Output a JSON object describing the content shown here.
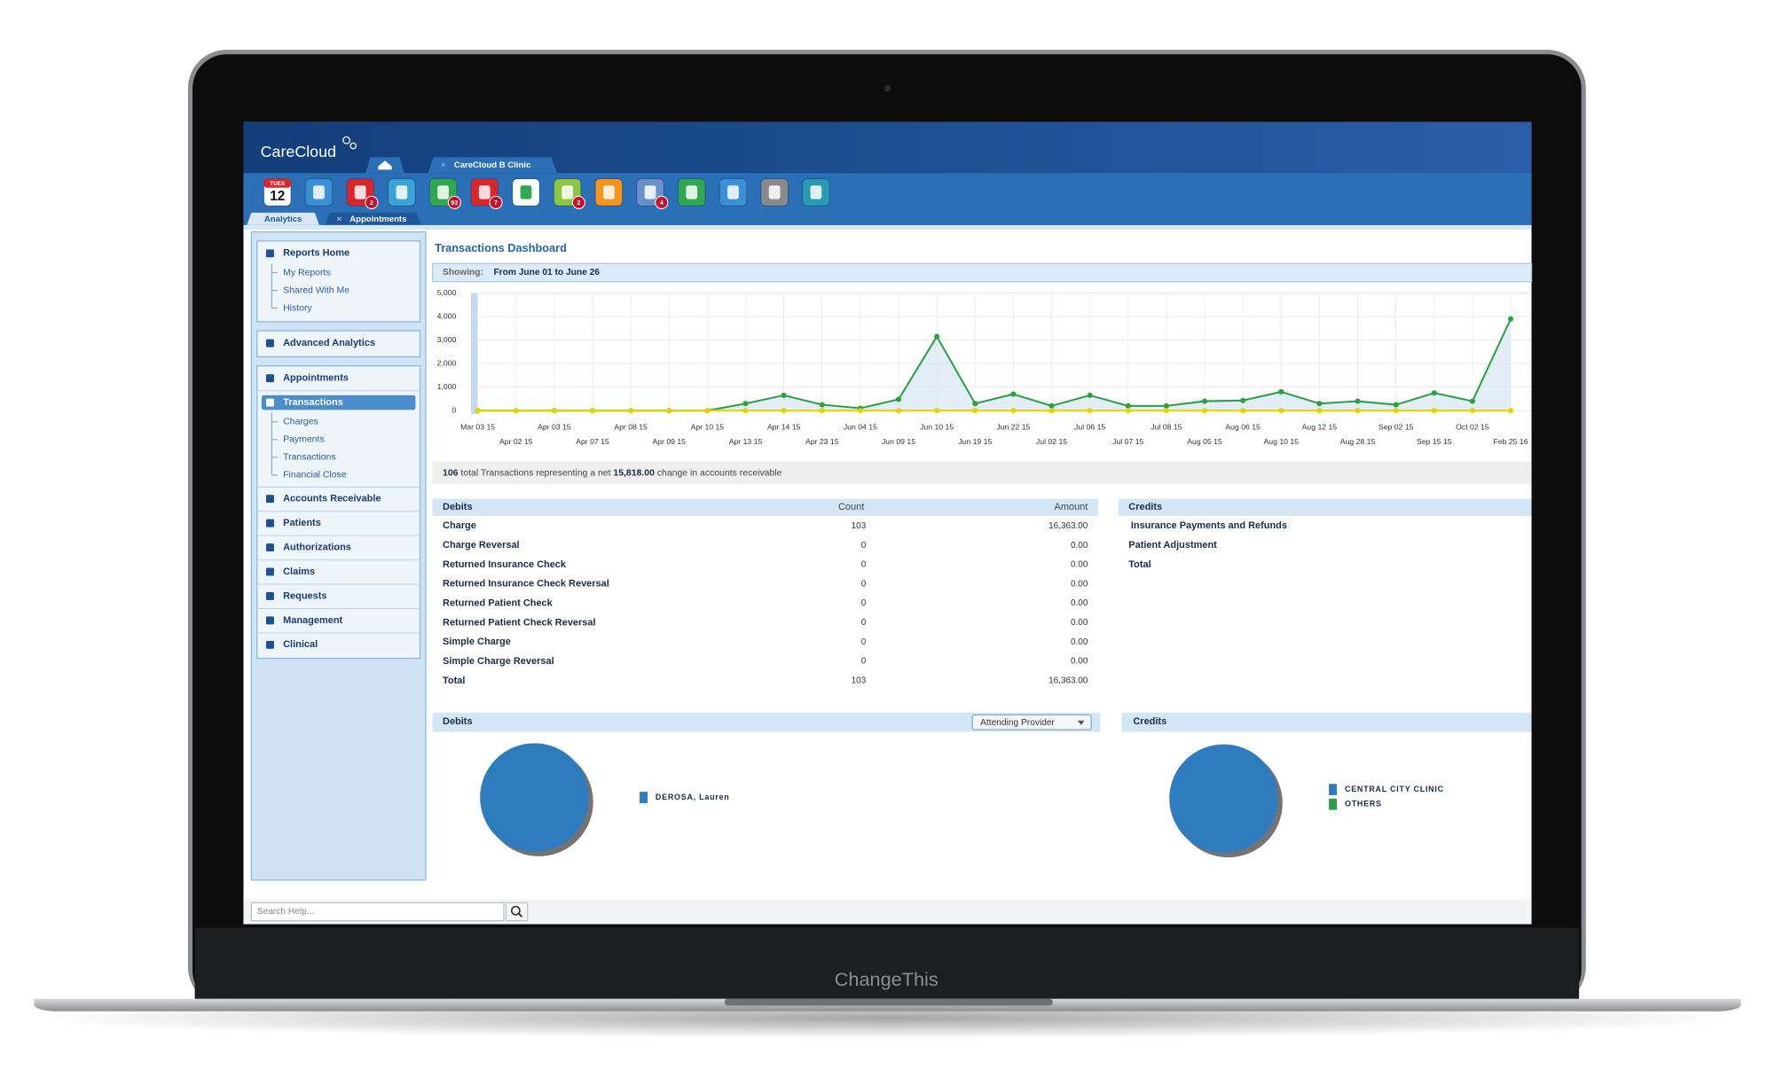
{
  "laptop_label": "ChangeThis",
  "header": {
    "logo": "CareCloud",
    "clinic_tab": "CareCloud B Clinic",
    "calendar_day": "TUES",
    "calendar_date": "12",
    "badges": [
      "2",
      "93",
      "7",
      "2",
      "4"
    ],
    "tabs": [
      "Analytics",
      "Appointments"
    ]
  },
  "sidebar": {
    "boxes": [
      [
        {
          "title": "Reports Home",
          "items": [
            "My Reports",
            "Shared With Me",
            "History"
          ]
        }
      ],
      [
        {
          "title": "Advanced Analytics",
          "items": []
        }
      ],
      [
        {
          "title": "Appointments",
          "items": []
        },
        {
          "title": "Transactions",
          "items": [
            "Charges",
            "Payments",
            "Transactions",
            "Financial Close"
          ],
          "active": true
        },
        {
          "title": "Accounts Receivable",
          "items": []
        },
        {
          "title": "Patients",
          "items": []
        },
        {
          "title": "Authorizations",
          "items": []
        },
        {
          "title": "Claims",
          "items": []
        },
        {
          "title": "Requests",
          "items": []
        },
        {
          "title": "Management",
          "items": []
        },
        {
          "title": "Clinical",
          "items": []
        }
      ]
    ],
    "search_placeholder": "Search Help..."
  },
  "dashboard": {
    "title": "Transactions Dashboard",
    "showing_label": "Showing:",
    "showing_range": "From June 01 to June 26",
    "chart": {
      "type": "line",
      "categories": [
        "Mar 03 15",
        "Apr 02 15",
        "Apr 03 15",
        "Apr 07 15",
        "Apr 08 15",
        "Apr 09 15",
        "Apr 10 15",
        "Apr 13 15",
        "Apr 14 15",
        "Apr 23 15",
        "Jun 04 15",
        "Jun 09 15",
        "Jun 10 15",
        "Jun 19 15",
        "Jun 22 15",
        "Jul 02 15",
        "Jul 06 15",
        "Jul 07 15",
        "Jul 08 15",
        "Aug 05 15",
        "Aug 06 15",
        "Aug 10 15",
        "Aug 12 15",
        "Aug 28 15",
        "Sep 02 15",
        "Sep 15 15",
        "Oct 02 15",
        "Feb 25 16"
      ],
      "ylim": [
        0,
        5000
      ],
      "yticks": [
        0,
        {
          "value": 1000,
          "label": "1,000"
        },
        {
          "value": 2000,
          "label": "2,000"
        },
        {
          "value": 3000,
          "label": "3,000"
        },
        {
          "value": 4000,
          "label": "4,000"
        },
        {
          "value": 5000,
          "label": "5,000"
        }
      ],
      "grid": true,
      "series": [
        {
          "color": "#2ea043",
          "values": [
            0,
            0,
            0,
            0,
            0,
            0,
            0,
            300,
            650,
            250,
            100,
            480,
            3150,
            300,
            700,
            200,
            650,
            200,
            200,
            400,
            430,
            800,
            300,
            400,
            250,
            750,
            400,
            3900
          ]
        },
        {
          "color": "#e3d400",
          "values": [
            0,
            0,
            0,
            0,
            0,
            0,
            0,
            0,
            0,
            0,
            0,
            0,
            0,
            0,
            0,
            0,
            0,
            0,
            0,
            0,
            0,
            0,
            0,
            0,
            0,
            0,
            0,
            0
          ]
        }
      ]
    },
    "summary": {
      "count": "106",
      "text1": "total Transactions representing a net",
      "amount": "15,818.00",
      "text2": "change in accounts receivable"
    },
    "debits_table": {
      "headers": [
        "Debits",
        "Count",
        "Amount"
      ],
      "rows": [
        [
          "Charge",
          "103",
          "16,363.00"
        ],
        [
          "Charge Reversal",
          "0",
          "0.00"
        ],
        [
          "Returned Insurance Check",
          "0",
          "0.00"
        ],
        [
          "Returned Insurance Check Reversal",
          "0",
          "0.00"
        ],
        [
          "Returned Patient Check",
          "0",
          "0.00"
        ],
        [
          "Returned Patient Check Reversal",
          "0",
          "0.00"
        ],
        [
          "Simple Charge",
          "0",
          "0.00"
        ],
        [
          "Simple Charge Reversal",
          "0",
          "0.00"
        ],
        [
          "Total",
          "103",
          "16,363.00"
        ]
      ]
    },
    "credits_table": {
      "headers": [
        "Credits"
      ],
      "rows": [
        [
          "Insurance Payments and Refunds"
        ],
        [
          "Patient Adjustment"
        ],
        [
          "Total"
        ]
      ]
    },
    "debits_panel": {
      "title": "Debits",
      "dropdown": "Attending Provider",
      "legend": [
        "DEROSA, Lauren"
      ]
    },
    "credits_panel": {
      "title": "Credits",
      "legend": [
        "CENTRAL CITY CLINIC",
        "OTHERS"
      ]
    }
  }
}
